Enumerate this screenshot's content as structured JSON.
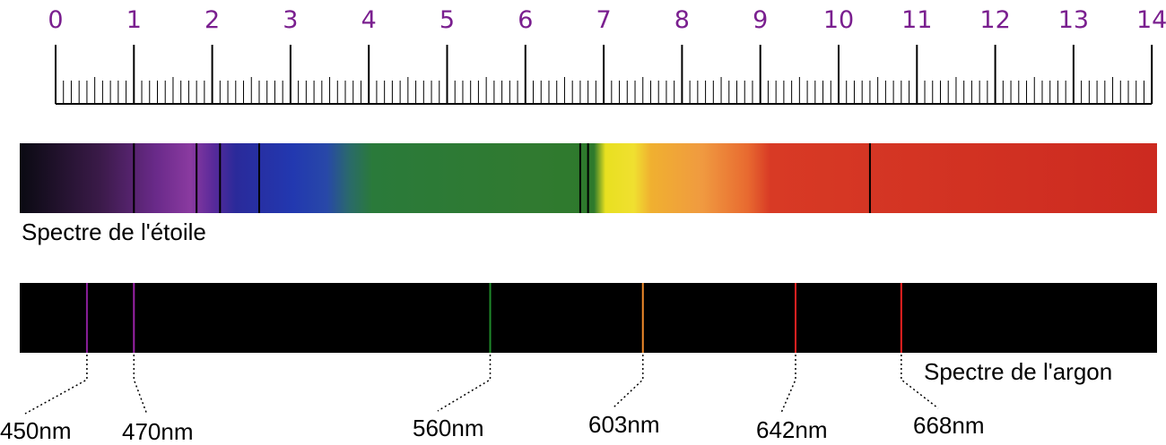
{
  "ruler": {
    "labels": [
      "0",
      "1",
      "2",
      "3",
      "4",
      "5",
      "6",
      "7",
      "8",
      "9",
      "10",
      "11",
      "12",
      "13",
      "14"
    ],
    "color": "#7a1f8f"
  },
  "star_spectrum": {
    "label": "Spectre de l'étoile",
    "absorption_lines": [
      1.0,
      1.8,
      2.1,
      2.6,
      6.7,
      6.8,
      10.4
    ]
  },
  "argon_spectrum": {
    "label": "Spectre de l'argon",
    "lines": [
      {
        "nm": "450nm",
        "position": 0.4,
        "color": "#8a1f9a"
      },
      {
        "nm": "470nm",
        "position": 1.0,
        "color": "#9a22a8"
      },
      {
        "nm": "560nm",
        "position": 5.55,
        "color": "#1f8a2a"
      },
      {
        "nm": "603nm",
        "position": 7.5,
        "color": "#f08a2a"
      },
      {
        "nm": "642nm",
        "position": 9.45,
        "color": "#e82020"
      },
      {
        "nm": "668nm",
        "position": 10.8,
        "color": "#e82020"
      }
    ]
  }
}
